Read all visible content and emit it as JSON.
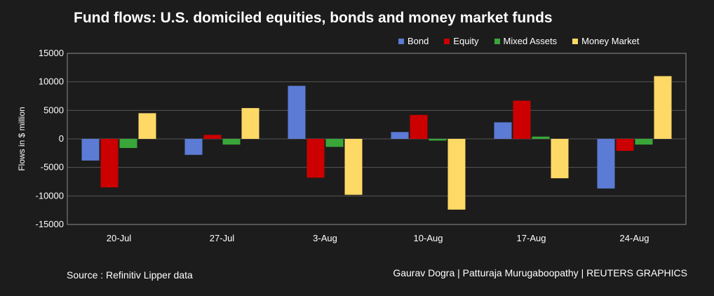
{
  "title": "Fund flows: U.S. domiciled equities, bonds and money market funds",
  "source_text": "Source : Refinitiv Lipper data",
  "credit_text": "Gaurav Dogra | Patturaja Murugaboopathy | REUTERS GRAPHICS",
  "colors": {
    "background": "#1c1c1c",
    "plot_border": "#8c8c8c",
    "grid": "#555555",
    "text": "#ffffff"
  },
  "chart_data": {
    "type": "bar",
    "title": "Fund flows: U.S. domiciled equities, bonds and money market funds",
    "xlabel": "",
    "ylabel": "Flows in $ million",
    "ylim": [
      -15000,
      15000
    ],
    "yticks": [
      15000,
      10000,
      5000,
      0,
      -5000,
      -10000,
      -15000
    ],
    "grid": true,
    "legend_position": "top-right",
    "categories": [
      "20-Jul",
      "27-Jul",
      "3-Aug",
      "10-Aug",
      "17-Aug",
      "24-Aug"
    ],
    "series": [
      {
        "name": "Bond",
        "color": "#5b7bd5",
        "values": [
          -3800,
          -2800,
          9300,
          1200,
          2900,
          -8700
        ]
      },
      {
        "name": "Equity",
        "color": "#cc0000",
        "values": [
          -8500,
          700,
          -6800,
          4200,
          6700,
          -2100
        ]
      },
      {
        "name": "Mixed Assets",
        "color": "#3aa63a",
        "values": [
          -1600,
          -1000,
          -1400,
          -300,
          400,
          -1000
        ]
      },
      {
        "name": "Money Market",
        "color": "#ffd966",
        "values": [
          4500,
          5400,
          -9800,
          -12400,
          -6900,
          11000
        ]
      }
    ]
  }
}
